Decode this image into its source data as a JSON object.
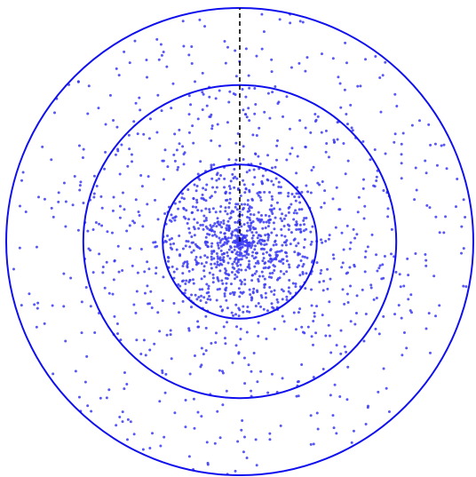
{
  "chart_data": {
    "type": "scatter",
    "title": "",
    "xlabel": "",
    "ylabel": "",
    "axes_visible": false,
    "grid": false,
    "legend": "none",
    "colors": {
      "circle_stroke": "#1010ee",
      "points": "#3b3bf5",
      "reference_line": "#000000"
    },
    "point_count": 1600,
    "point_distribution": {
      "shape": "radial, centrally concentrated",
      "center": [
        0,
        0
      ],
      "max_radius": 1.0,
      "fraction_within_inner_circle": 0.55,
      "fraction_between_inner_and_middle": 0.27,
      "fraction_between_middle_and_outer": 0.18
    },
    "circles": [
      {
        "name": "inner",
        "radius": 0.33
      },
      {
        "name": "middle",
        "radius": 0.67
      },
      {
        "name": "outer",
        "radius": 1.0
      }
    ],
    "reference_line": {
      "style": "dashed",
      "from": [
        0,
        0
      ],
      "to": [
        0,
        1.0
      ]
    },
    "xlim": [
      -1.0,
      1.0
    ],
    "ylim": [
      -1.0,
      1.0
    ]
  }
}
